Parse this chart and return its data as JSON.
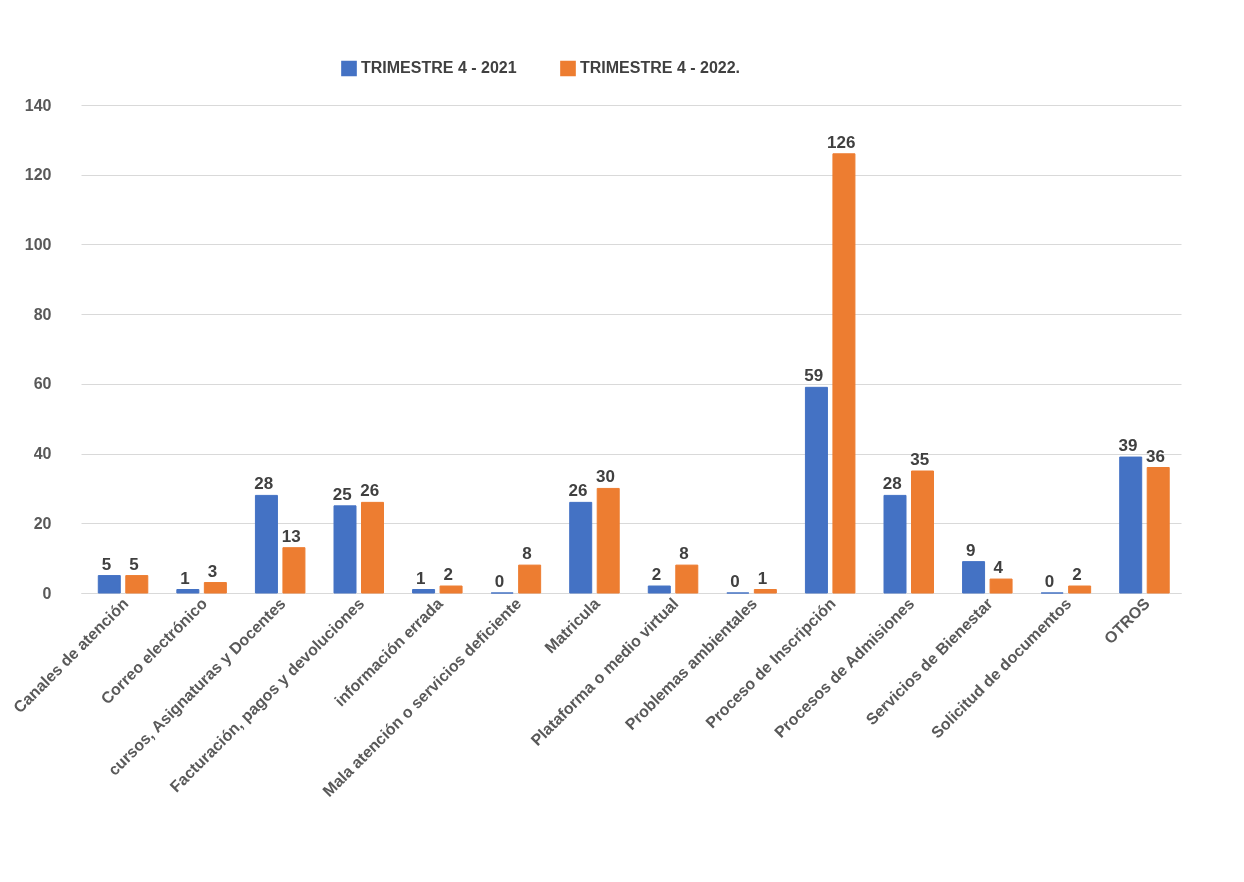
{
  "chart_data": {
    "type": "bar",
    "categories": [
      "Canales de atención",
      "Correo electrónico",
      "cursos, Asignaturas y Docentes",
      "Facturación, pagos y devoluciones",
      "información errada",
      "Mala atención o servicios deficiente",
      "Matricula",
      "Plataforma o medio virtual",
      "Problemas ambientales",
      "Proceso de Inscripción",
      "Procesos de Admisiones",
      "Servicios de Bienestar",
      "Solicitud de documentos",
      "OTROS"
    ],
    "series": [
      {
        "name": "TRIMESTRE 4 - 2021",
        "color": "#4472c4",
        "values": [
          5,
          1,
          28,
          25,
          1,
          0,
          26,
          2,
          0,
          59,
          28,
          9,
          0,
          39
        ]
      },
      {
        "name": "TRIMESTRE 4 - 2022.",
        "color": "#ed7d31",
        "values": [
          5,
          3,
          13,
          26,
          2,
          8,
          30,
          8,
          1,
          126,
          35,
          4,
          2,
          36
        ]
      }
    ],
    "ylim": [
      0,
      140
    ],
    "yticks": [
      0,
      20,
      40,
      60,
      80,
      100,
      120,
      140
    ],
    "grid": "y",
    "legend": "top",
    "data_labels": true
  }
}
